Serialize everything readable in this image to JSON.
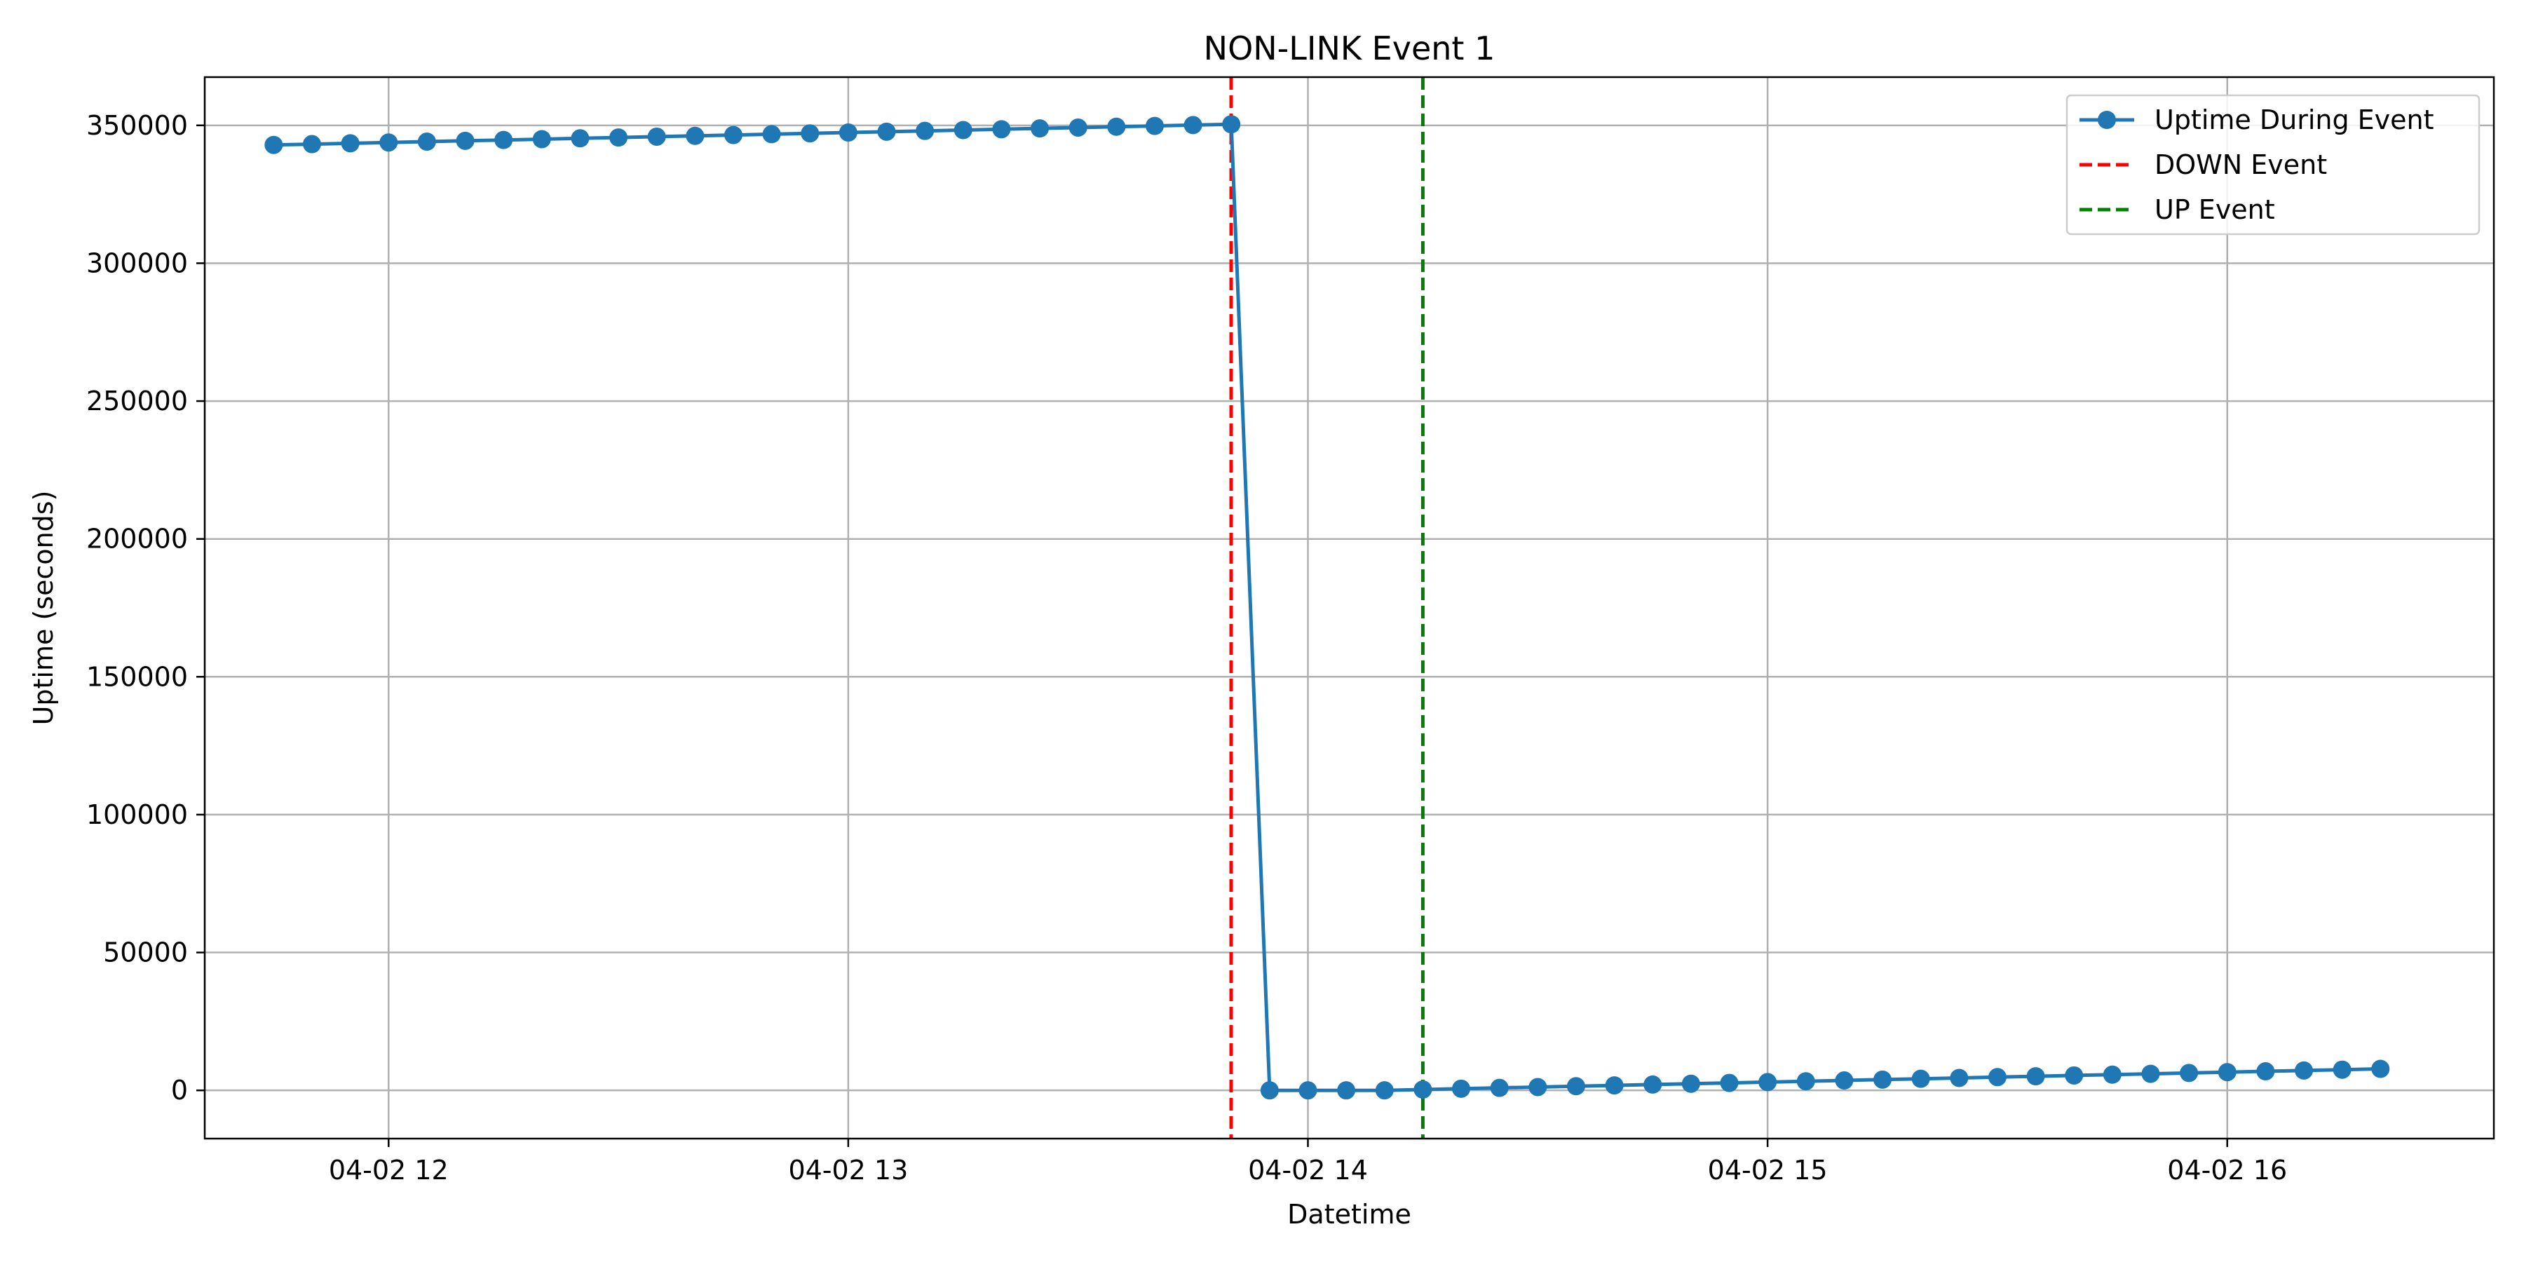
{
  "chart_data": {
    "type": "line",
    "title": "NON-LINK Event 1",
    "xlabel": "Datetime",
    "ylabel": "Uptime (seconds)",
    "xlim_hours": [
      11.6,
      16.58
    ],
    "ylim": [
      -17500,
      367500
    ],
    "x_ticks": [
      {
        "value": 12,
        "label": "04-02 12"
      },
      {
        "value": 13,
        "label": "04-02 13"
      },
      {
        "value": 14,
        "label": "04-02 14"
      },
      {
        "value": 15,
        "label": "04-02 15"
      },
      {
        "value": 16,
        "label": "04-02 16"
      }
    ],
    "y_ticks": [
      0,
      50000,
      100000,
      150000,
      200000,
      250000,
      300000,
      350000
    ],
    "grid": true,
    "legend_position": "top-right",
    "series": [
      {
        "name": "Uptime During Event",
        "color": "#1f77b4",
        "x_hours": [
          11.75,
          11.8333,
          11.9167,
          12.0,
          12.0833,
          12.1667,
          12.25,
          12.3333,
          12.4167,
          12.5,
          12.5833,
          12.6667,
          12.75,
          12.8333,
          12.9167,
          13.0,
          13.0833,
          13.1667,
          13.25,
          13.3333,
          13.4167,
          13.5,
          13.5833,
          13.6667,
          13.75,
          13.8333,
          13.9167,
          14.0,
          14.0833,
          14.1667,
          14.25,
          14.3333,
          14.4167,
          14.5,
          14.5833,
          14.6667,
          14.75,
          14.8333,
          14.9167,
          15.0,
          15.0833,
          15.1667,
          15.25,
          15.3333,
          15.4167,
          15.5,
          15.5833,
          15.6667,
          15.75,
          15.8333,
          15.9167,
          16.0,
          16.0833,
          16.1667,
          16.25,
          16.3333
        ],
        "y": [
          342900,
          343200,
          343500,
          343800,
          344100,
          344400,
          344700,
          345000,
          345300,
          345600,
          345900,
          346200,
          346500,
          346800,
          347100,
          347400,
          347700,
          348000,
          348300,
          348600,
          348900,
          349200,
          349500,
          349800,
          350100,
          350400,
          0,
          0,
          0,
          0,
          300,
          600,
          900,
          1200,
          1500,
          1800,
          2100,
          2400,
          2700,
          3000,
          3300,
          3600,
          3900,
          4200,
          4500,
          4800,
          5100,
          5400,
          5700,
          6000,
          6300,
          6600,
          6900,
          7200,
          7500,
          7800
        ]
      }
    ],
    "vlines": [
      {
        "name": "DOWN Event",
        "x_hours": 13.833,
        "color": "#ff0000",
        "style": "dashed"
      },
      {
        "name": "UP Event",
        "x_hours": 14.25,
        "color": "#008000",
        "style": "dashed"
      }
    ],
    "colors": {
      "grid": "#b0b0b0",
      "axes": "#000000"
    }
  }
}
